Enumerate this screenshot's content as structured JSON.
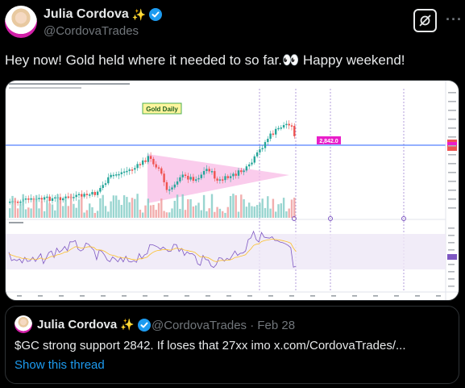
{
  "author": {
    "name": "Julia Cordova",
    "handle": "@CordovaTrades"
  },
  "tweet": {
    "text": "Hey now!  Gold held where it needed to so far.👀  Happy weekend!"
  },
  "chart": {
    "label": "Gold Daily",
    "support_label": "2,842.0",
    "colors": {
      "up": "#26a69a",
      "down": "#ef5350",
      "support": "#2962ff",
      "triangle": "#f8bbe6",
      "label_bg": "#e91ec9"
    }
  },
  "quote": {
    "name": "Julia Cordova",
    "handle_date": "@CordovaTrades · Feb 28",
    "text": "$GC strong support 2842.  If loses that 27xx imo x.com/CordovaTrades/...",
    "show_thread": "Show this thread"
  }
}
